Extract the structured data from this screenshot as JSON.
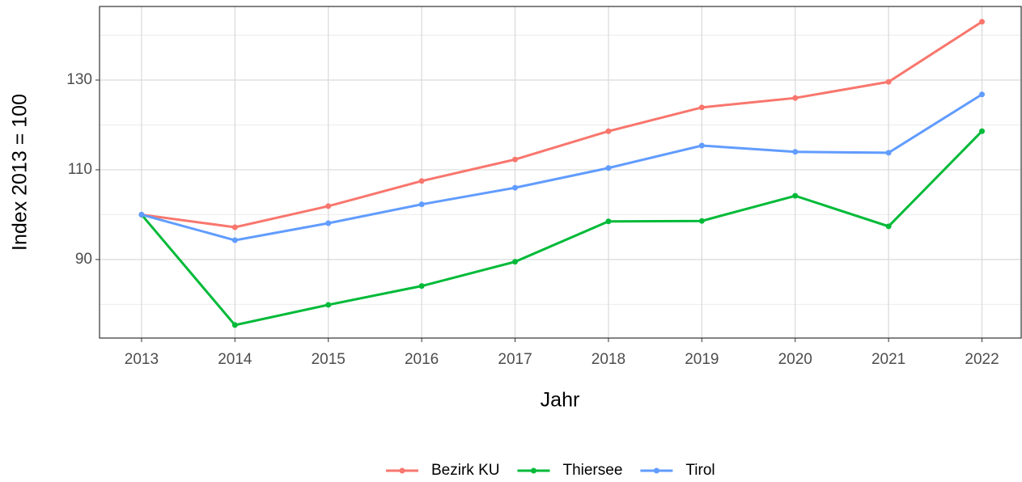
{
  "chart_data": {
    "type": "line",
    "x_label": "Jahr",
    "y_label": "Index  2013  = 100",
    "x": [
      2013,
      2014,
      2015,
      2016,
      2017,
      2018,
      2019,
      2020,
      2021,
      2022
    ],
    "series": [
      {
        "name": "Bezirk KU",
        "color": "#f8766d",
        "values": [
          100,
          97.2,
          101.9,
          107.5,
          112.3,
          118.6,
          123.9,
          126.0,
          129.6,
          143.0
        ]
      },
      {
        "name": "Thiersee",
        "color": "#00ba38",
        "values": [
          100,
          75.4,
          79.9,
          84.1,
          89.5,
          98.5,
          98.6,
          104.2,
          97.4,
          118.6
        ]
      },
      {
        "name": "Tirol",
        "color": "#619cff",
        "values": [
          100,
          94.3,
          98.1,
          102.3,
          106.0,
          110.4,
          115.4,
          114.0,
          113.8,
          126.8
        ]
      }
    ],
    "xlim": [
      2012.55,
      2022.42
    ],
    "xticks": [
      2013,
      2014,
      2015,
      2016,
      2017,
      2018,
      2019,
      2020,
      2021,
      2022
    ],
    "ylim": [
      72.5,
      146.4
    ],
    "yticks": [
      90,
      110,
      130
    ],
    "y_minor_gridlines": [
      80,
      100,
      120,
      140
    ],
    "grid": true,
    "legend": "bottom"
  }
}
